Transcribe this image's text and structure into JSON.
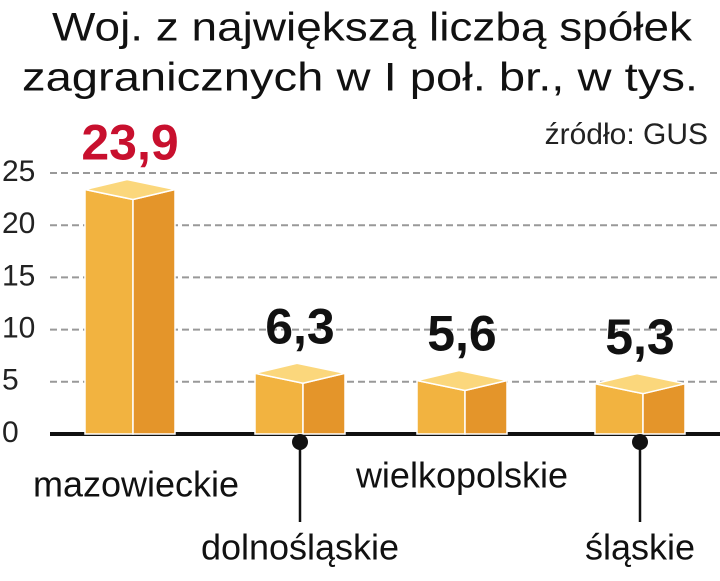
{
  "chart_data": {
    "type": "bar",
    "title": [
      "Woj. z największą liczbą spółek",
      "zagranicznych w I poł. br., w tys."
    ],
    "source": "źródło: GUS",
    "categories": [
      "mazowieckie",
      "dolnośląskie",
      "wielkopolskie",
      "śląskie"
    ],
    "values": [
      23.9,
      6.3,
      5.6,
      5.3
    ],
    "value_labels": [
      "23,9",
      "6,3",
      "5,6",
      "5,3"
    ],
    "value_label_colors": [
      "#c8102e",
      "#111111",
      "#111111",
      "#111111"
    ],
    "color": "#f2b340",
    "ylim": [
      0,
      25
    ],
    "yticks": [
      0,
      5,
      10,
      15,
      20,
      25
    ],
    "grid": true
  }
}
